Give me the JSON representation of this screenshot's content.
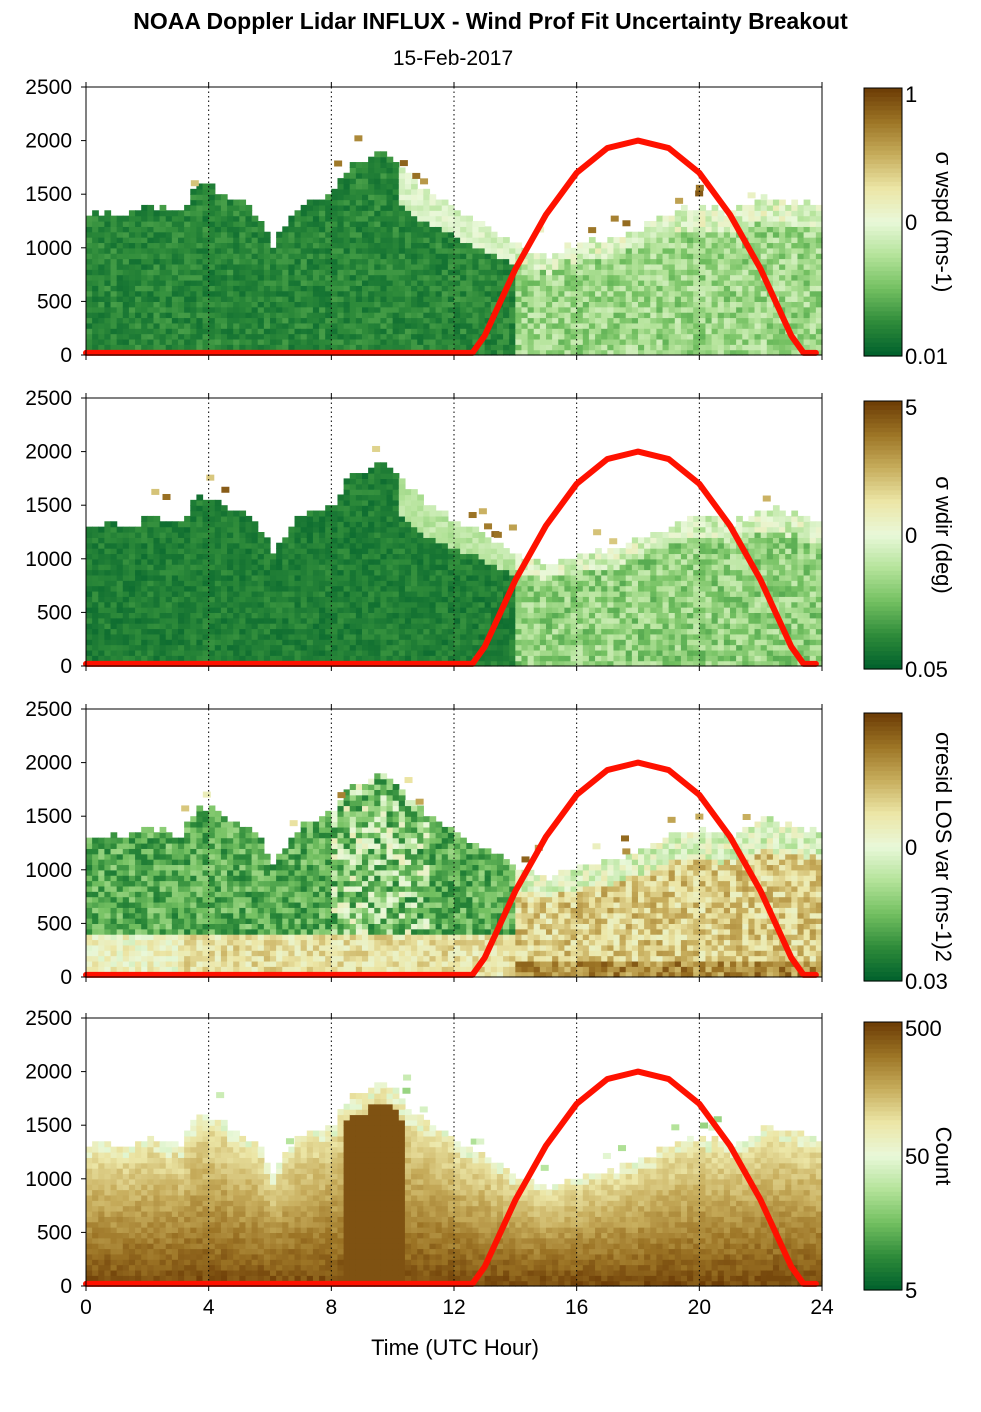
{
  "title": "NOAA Doppler Lidar INFLUX - Wind Prof Fit Uncertainty Breakout",
  "subtitle": "15-Feb-2017",
  "colors": {
    "sun_curve": "#ff1100",
    "colormap": [
      "#00602c",
      "#2e8b3a",
      "#73c061",
      "#b4e39a",
      "#e9f8d9",
      "#ece6a6",
      "#c7ad5c",
      "#9c7425",
      "#6b3b05"
    ]
  },
  "chart_data": {
    "type": "heatmap",
    "xlabel": "Time (UTC Hour)",
    "xlim": [
      0,
      24
    ],
    "ylim": [
      0,
      2500
    ],
    "x_ticks": [
      "0",
      "4",
      "8",
      "12",
      "16",
      "20",
      "24"
    ],
    "y_ticks": [
      "0",
      "500",
      "1000",
      "1500",
      "2000",
      "2500"
    ],
    "vertical_gridlines_at_hours": [
      4,
      8,
      12,
      16,
      20,
      24
    ],
    "panels": [
      {
        "colorbar_label": "σ wspd (ms-1)",
        "colorbar_ticks": [
          "1",
          "0",
          "0.01"
        ],
        "color_scale": "log"
      },
      {
        "colorbar_label": "σ wdir (deg)",
        "colorbar_ticks": [
          "5",
          "0",
          "0.05"
        ],
        "color_scale": "log"
      },
      {
        "colorbar_label": "σresid LOS var (ms-1)2",
        "colorbar_ticks": [
          "0",
          "0.03"
        ],
        "color_scale": "log"
      },
      {
        "colorbar_label": "Count",
        "colorbar_ticks": [
          "500",
          "50",
          "5"
        ],
        "color_scale": "log"
      }
    ],
    "data_top_height_m": {
      "hours": [
        0,
        1,
        2,
        3,
        3.5,
        4,
        5,
        5.5,
        6,
        6.5,
        7,
        8,
        8.5,
        9,
        9.5,
        10,
        10.5,
        11,
        12,
        13,
        14,
        15,
        16,
        17,
        18,
        19,
        20,
        21,
        22,
        23,
        23.8
      ],
      "height": [
        1300,
        1280,
        1360,
        1300,
        1550,
        1550,
        1400,
        1300,
        1020,
        1250,
        1400,
        1500,
        1760,
        1780,
        1900,
        1800,
        1620,
        1500,
        1330,
        1170,
        1000,
        900,
        1020,
        1050,
        1150,
        1300,
        1380,
        1300,
        1450,
        1400,
        1350
      ]
    },
    "series": [
      {
        "name": "",
        "x": [
          0,
          12.6,
          13,
          14,
          15,
          16,
          17,
          18,
          19,
          20,
          21,
          22,
          23,
          23.4,
          23.8
        ],
        "y": [
          20,
          20,
          180,
          800,
          1310,
          1700,
          1930,
          2000,
          1930,
          1700,
          1310,
          800,
          180,
          20,
          20
        ]
      }
    ]
  }
}
